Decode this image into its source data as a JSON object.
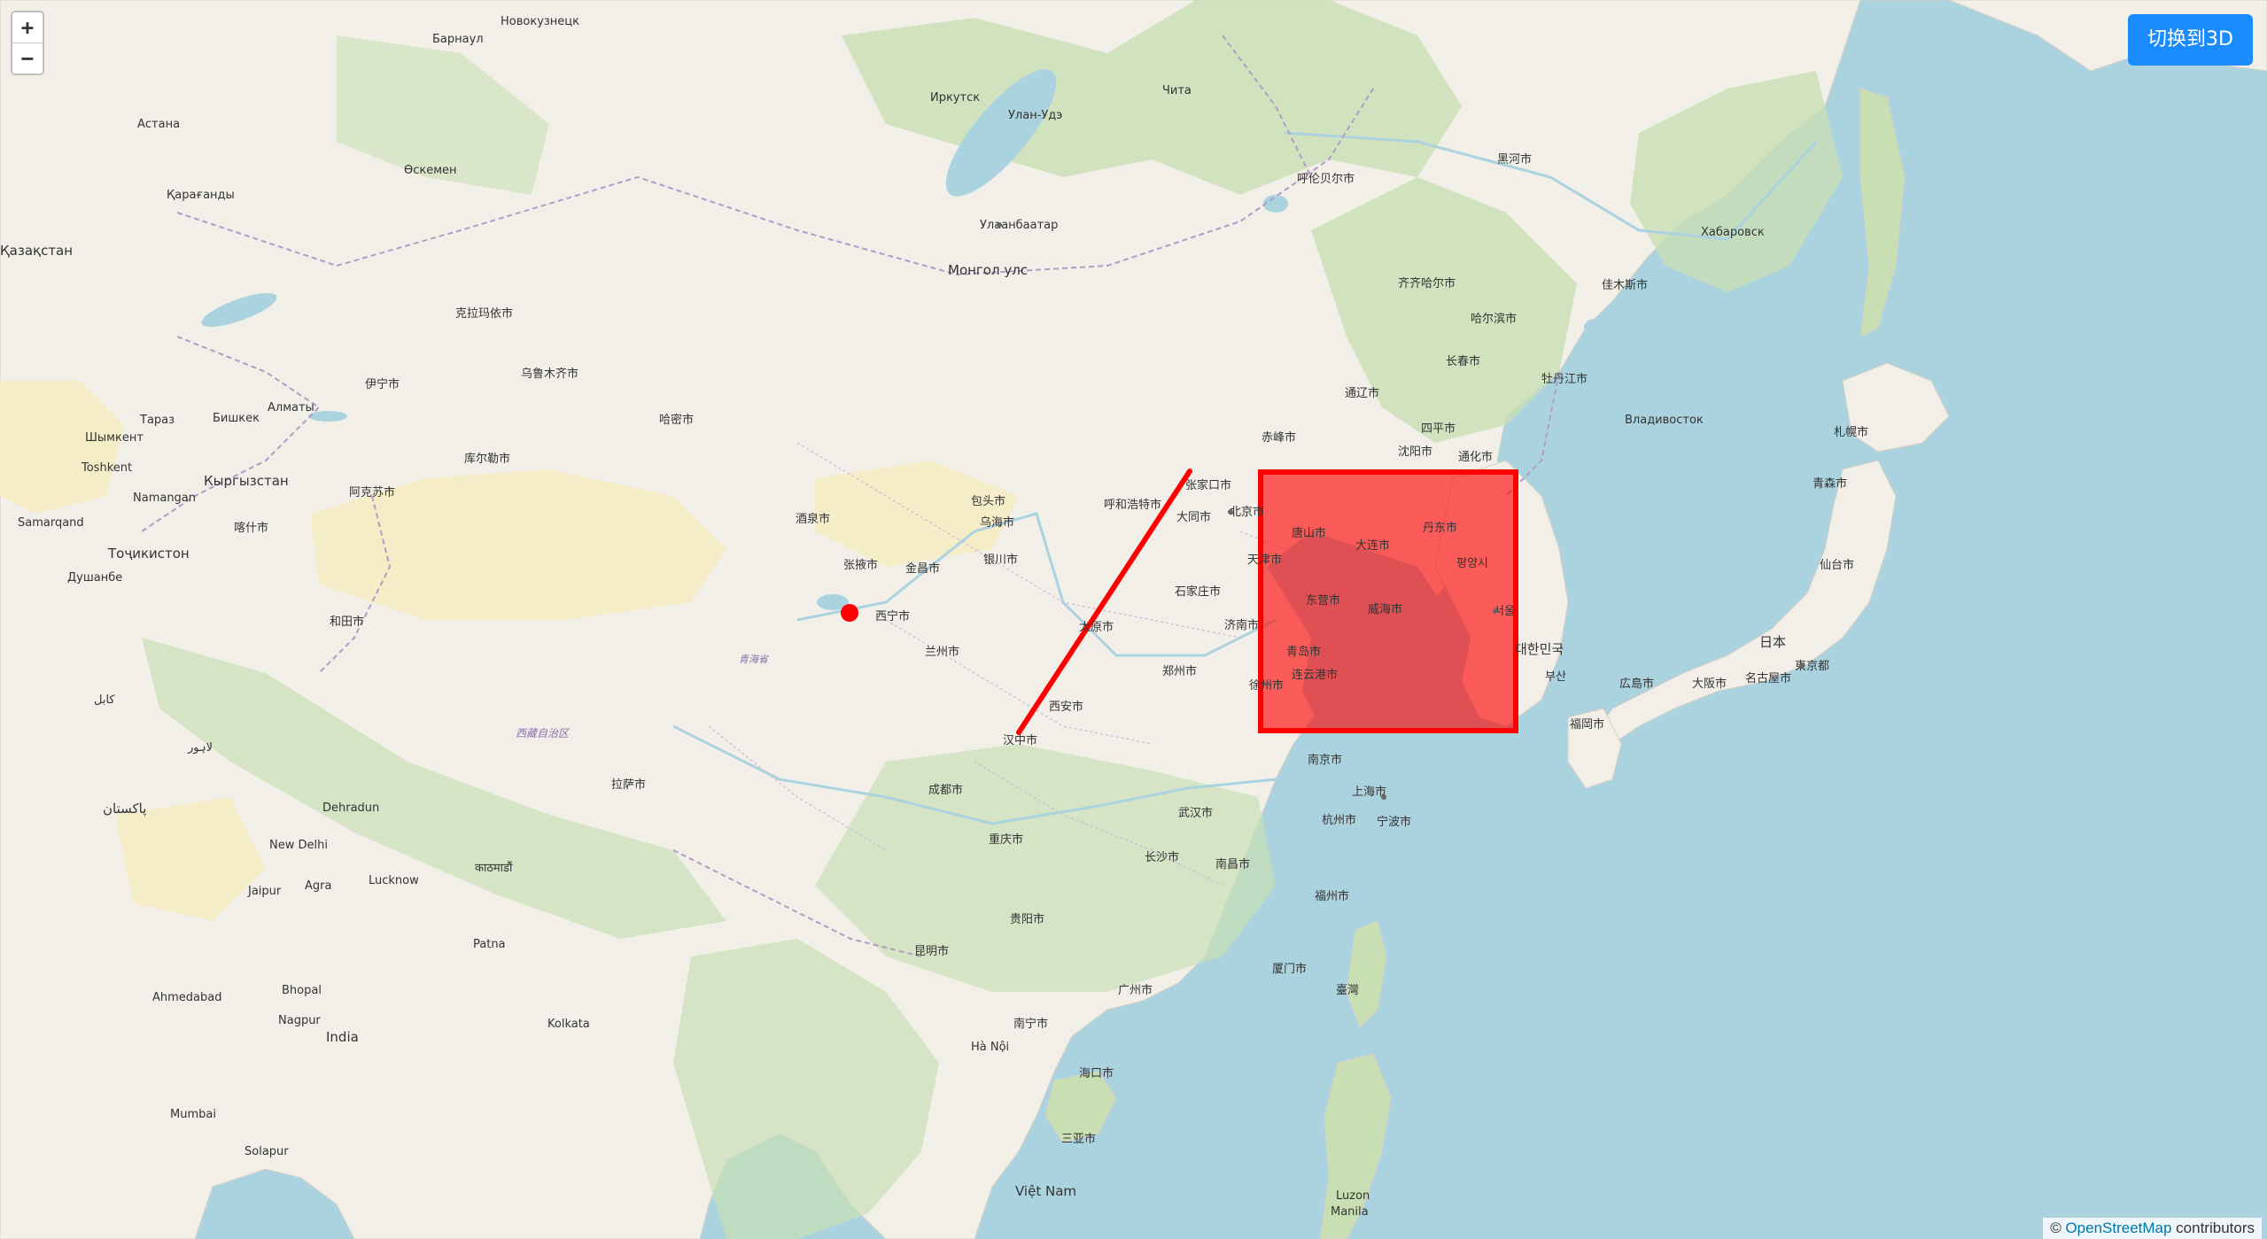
{
  "controls": {
    "zoom_in": "+",
    "zoom_out": "−",
    "switch_label": "切换到3D"
  },
  "attribution": {
    "prefix": "© ",
    "link": "OpenStreetMap",
    "suffix": " contributors"
  },
  "colors": {
    "water": "#aad3df",
    "land": "#f2efe9",
    "forest": "#c8dfb4",
    "desert": "#f5ecc8",
    "overlay_red": "#ff0000",
    "button": "#1a8cff"
  },
  "labels": {
    "novokuznetsk": "Новокузнецк",
    "barnaul": "Барнаул",
    "irkutsk": "Иркутск",
    "ulan_ude": "Улан-Удэ",
    "chita": "Чита",
    "astana": "Астана",
    "karaganda": "Қарағанды",
    "kazakhstan": "Қазақстан",
    "oskemen": "Өскемен",
    "ulaanbaatar": "Улаанбаатар",
    "mongol": "Монгол улс",
    "karamay": "克拉玛依市",
    "urumqi": "乌鲁木齐市",
    "yining": "伊宁市",
    "almaty": "Алматы",
    "bishkek": "Бишкек",
    "taraz": "Тараз",
    "shymkent": "Шымкент",
    "toshkent": "Toshkent",
    "namangan": "Namangan",
    "samarqand": "Samarqand",
    "qyrgyzstan": "Кыргызстан",
    "kashgar": "喀什市",
    "aksu": "阿克苏市",
    "korla": "库尔勒市",
    "tojikiston": "Тоҷикистон",
    "dushanbe": "Душанбе",
    "hotan": "和田市",
    "hami": "哈密市",
    "jiuquan": "酒泉市",
    "zhangye": "张掖市",
    "jinchang": "金昌市",
    "xining": "西宁市",
    "lanzhou": "兰州市",
    "qinghai": "青海省",
    "xizang": "西藏自治区",
    "lhasa": "拉萨市",
    "baotou": "包头市",
    "hohhot": "呼和浩特市",
    "wuhai": "乌海市",
    "yinchuan": "银川市",
    "datong": "大同市",
    "zhangjiakou": "张家口市",
    "beijing": "北京市",
    "tianjin": "天津市",
    "shijiazhuang": "石家庄市",
    "taiyuan": "太原市",
    "xian": "西安市",
    "zhengzhou": "郑州市",
    "jinan": "济南市",
    "tangshan": "唐山市",
    "dalian": "大连市",
    "dandong": "丹东市",
    "pyongyang": "평양시",
    "qingdao": "青岛市",
    "weihai": "威海市",
    "dongying": "东营市",
    "lianyungang": "连云港市",
    "xuzhou": "徐州市",
    "hanzhong": "汉中市",
    "chengdu": "成都市",
    "chongqing": "重庆市",
    "wuhan": "武汉市",
    "nanjing": "南京市",
    "shanghai": "上海市",
    "hangzhou": "杭州市",
    "ningbo": "宁波市",
    "changsha": "长沙市",
    "nanchang": "南昌市",
    "fuzhou": "福州市",
    "guiyang": "贵阳市",
    "kunming": "昆明市",
    "nanning": "南宁市",
    "guangzhou": "广州市",
    "xiamen": "厦门市",
    "taiwan": "臺灣",
    "haikou": "海口市",
    "sanya": "三亚市",
    "hanoi": "Hà Nội",
    "viet_nam": "Việt Nam",
    "kathmandu": "काठमाडौं",
    "new_delhi": "New Delhi",
    "india": "India",
    "lucknow": "Lucknow",
    "patna": "Patna",
    "kolkata": "Kolkata",
    "ahmedabad": "Ahmedabad",
    "mumbai": "Mumbai",
    "solapur": "Solapur",
    "nagpur": "Nagpur",
    "bhopal": "Bhopal",
    "jaipur": "Jaipur",
    "agra": "Agra",
    "dehradun": "Dehradun",
    "lahore": "لاہور",
    "pakistan": "پاکستان",
    "kabul": "کابل",
    "harbin": "哈尔滨市",
    "changchun": "长春市",
    "shenyang": "沈阳市",
    "qiqihar": "齐齐哈尔市",
    "hulunbuir": "呼伦贝尔市",
    "heihe": "黑河市",
    "jiamusi": "佳木斯市",
    "mudanjiang": "牡丹江市",
    "khabarovsk": "Хабаровск",
    "vladivostok": "Владивосток",
    "sapporo": "札幌市",
    "aomori": "青森市",
    "sendai": "仙台市",
    "tokyo": "東京都",
    "nagoya": "名古屋市",
    "osaka": "大阪市",
    "fukuoka": "福岡市",
    "japan": "日本",
    "hiroshima": "広島市",
    "seoul": "서울",
    "busan": "부산",
    "korea": "대한민국",
    "chifeng": "赤峰市",
    "tongliao": "通辽市",
    "siping": "四平市",
    "tonghua": "通化市",
    "manila": "Manila",
    "luzon": "Luzon"
  }
}
